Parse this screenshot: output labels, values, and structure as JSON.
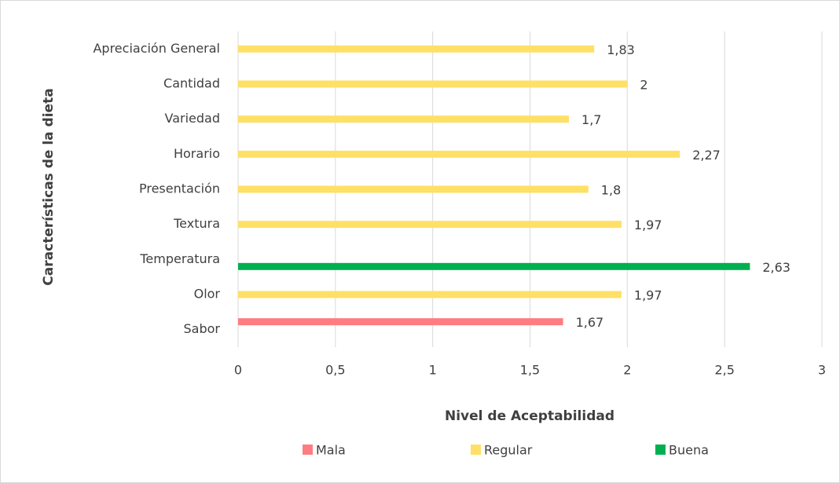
{
  "chart_data": {
    "type": "bar",
    "orientation": "horizontal",
    "xlabel": "Nivel de Aceptabilidad",
    "ylabel": "Características de la dieta",
    "categories": [
      "Sabor",
      "Olor",
      "Temperatura",
      "Textura",
      "Presentación",
      "Horario",
      "Variedad",
      "Cantidad",
      "Apreciación General"
    ],
    "series": [
      {
        "name": "Mala",
        "color": "#ff7c80",
        "values": [
          1.67,
          null,
          null,
          null,
          null,
          null,
          null,
          null,
          null
        ],
        "value_labels": [
          "1,67",
          null,
          null,
          null,
          null,
          null,
          null,
          null,
          null
        ]
      },
      {
        "name": "Regular",
        "color": "#ffe066",
        "values": [
          null,
          1.97,
          null,
          1.97,
          1.8,
          2.27,
          1.7,
          2,
          1.83
        ],
        "value_labels": [
          null,
          "1,97",
          null,
          "1,97",
          "1,8",
          "2,27",
          "1,7",
          "2",
          "1,83"
        ]
      },
      {
        "name": "Buena",
        "color": "#00b050",
        "values": [
          null,
          null,
          2.63,
          null,
          null,
          null,
          null,
          null,
          null
        ],
        "value_labels": [
          null,
          null,
          "2,63",
          null,
          null,
          null,
          null,
          null,
          null
        ]
      }
    ],
    "xlim": [
      0,
      3
    ],
    "xticks": [
      0,
      {
        "value": 0.5,
        "label": "0,5"
      },
      1,
      {
        "value": 1.5,
        "label": "1,5"
      },
      2,
      {
        "value": 2.5,
        "label": "2,5"
      },
      3
    ],
    "grid": true,
    "legend": "bottom"
  }
}
